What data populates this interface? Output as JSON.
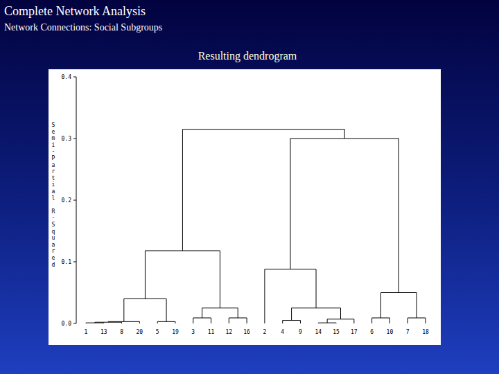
{
  "slide": {
    "title": "Complete Network Analysis",
    "subtitle": "Network Connections: Social Subgroups"
  },
  "chart_data": {
    "type": "dendrogram",
    "title": "Resulting dendrogram",
    "y_label": "Semi-Partial R-Squared",
    "ylim": [
      0,
      0.4
    ],
    "yticks": [
      {
        "value": 0,
        "label": "0.0"
      },
      0.1,
      0.2,
      0.3,
      0.4
    ],
    "tree": {
      "height": 0.315,
      "children": [
        {
          "height": 0.118,
          "children": [
            {
              "height": 0.04,
              "children": [
                {
                  "height": 0.003,
                  "children": [
                    {
                      "height": 0.002,
                      "children": [
                        {
                          "height": 0.001,
                          "children": [
                            "1",
                            "13"
                          ]
                        },
                        "8"
                      ]
                    },
                    "20"
                  ]
                },
                {
                  "height": 0.003,
                  "children": [
                    "5",
                    "19"
                  ]
                }
              ]
            },
            {
              "height": 0.025,
              "children": [
                {
                  "height": 0.009,
                  "children": [
                    "3",
                    "11"
                  ]
                },
                {
                  "height": 0.009,
                  "children": [
                    "12",
                    "16"
                  ]
                }
              ]
            }
          ]
        },
        {
          "height": 0.3,
          "children": [
            {
              "height": 0.088,
              "children": [
                "2",
                {
                  "height": 0.025,
                  "children": [
                    {
                      "height": 0.005,
                      "children": [
                        "4",
                        "9"
                      ]
                    },
                    {
                      "height": 0.007,
                      "children": [
                        {
                          "height": 0.001,
                          "children": [
                            "14",
                            "15"
                          ]
                        },
                        "17"
                      ]
                    }
                  ]
                }
              ]
            },
            {
              "height": 0.05,
              "children": [
                {
                  "height": 0.009,
                  "children": [
                    "6",
                    "10"
                  ]
                },
                {
                  "height": 0.009,
                  "children": [
                    "7",
                    "18"
                  ]
                }
              ]
            }
          ]
        }
      ]
    }
  }
}
